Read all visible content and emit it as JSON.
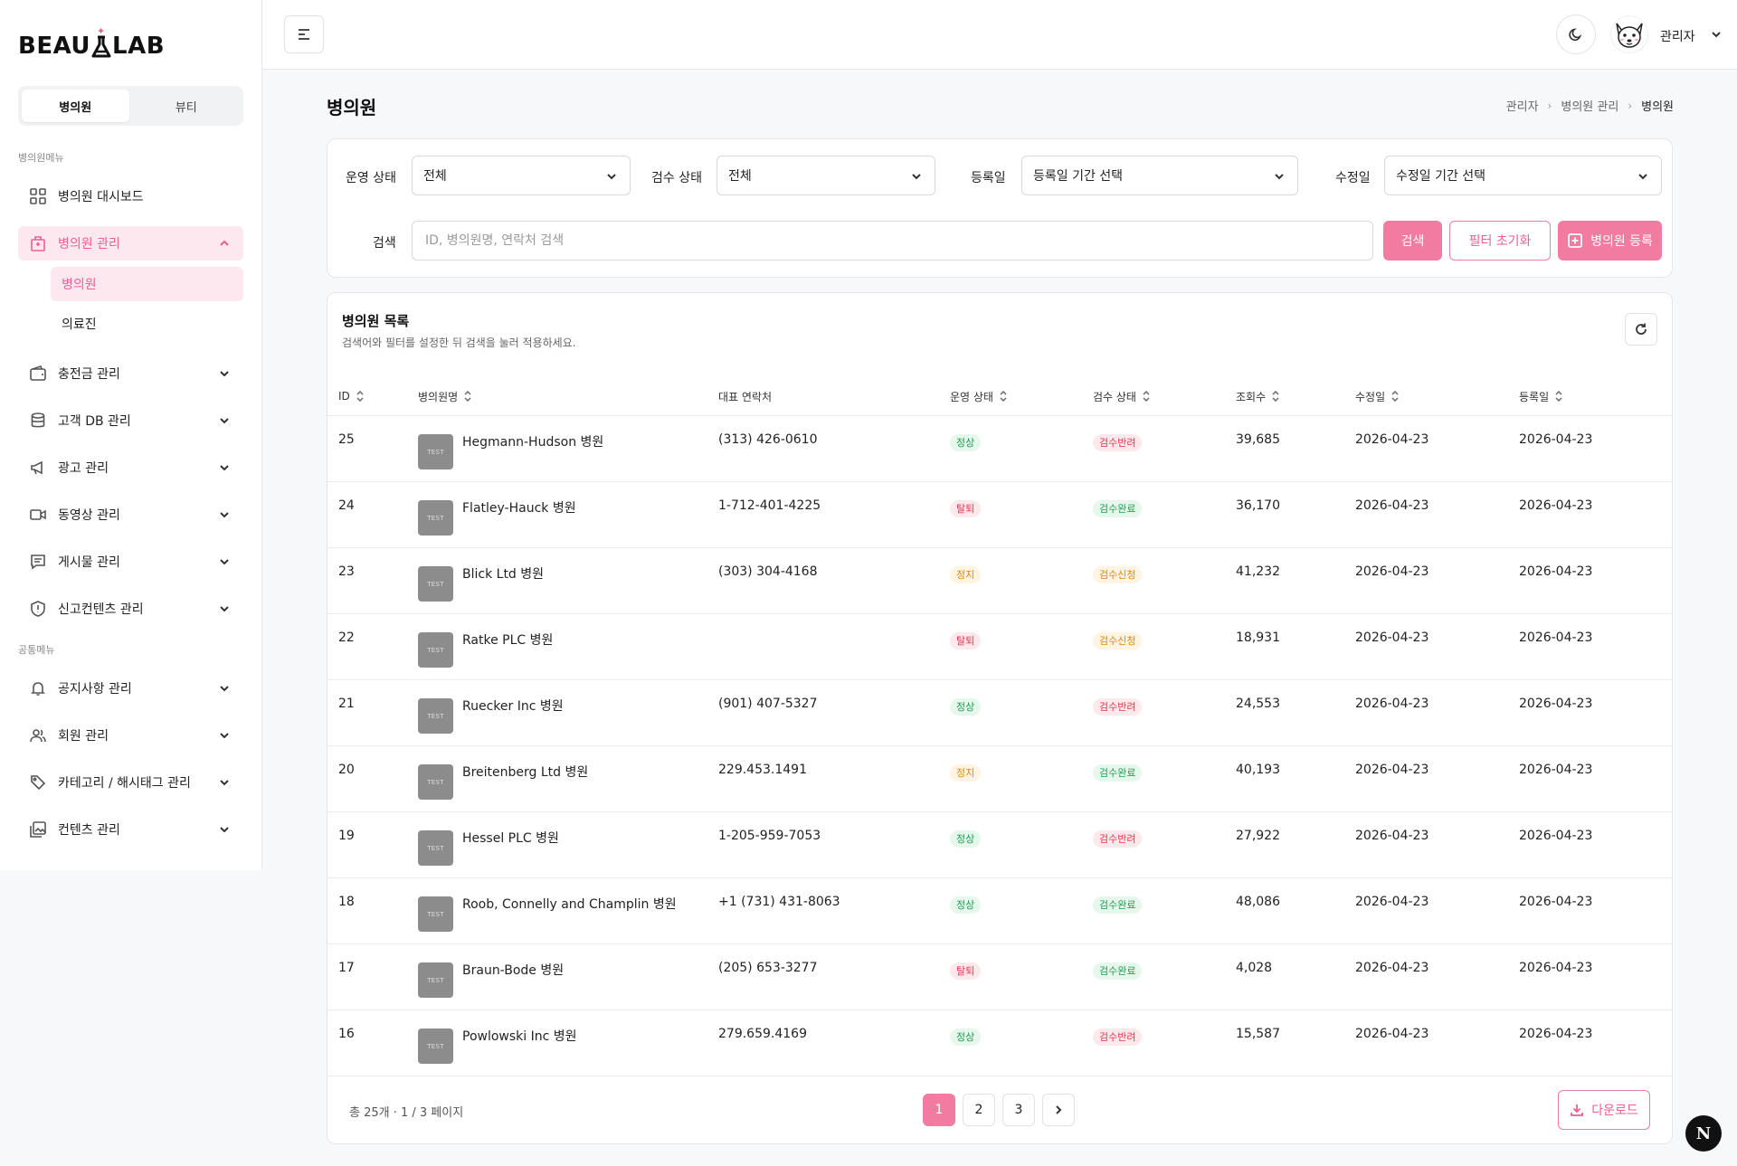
{
  "brand": {
    "logo": "BEAU LAB",
    "accent": "#f27ba2"
  },
  "sidebar": {
    "toggle": [
      "병의원",
      "뷰티"
    ],
    "section1": "병의원메뉴",
    "section2": "공통메뉴",
    "items": [
      {
        "label": "병의원 대시보드",
        "icon": "grid-icon"
      },
      {
        "label": "병의원 관리",
        "icon": "building-icon"
      },
      {
        "label": "충전금 관리",
        "icon": "wallet-icon"
      },
      {
        "label": "고객 DB 관리",
        "icon": "database-icon"
      },
      {
        "label": "광고 관리",
        "icon": "megaphone-icon"
      },
      {
        "label": "동영상 관리",
        "icon": "video-icon"
      },
      {
        "label": "게시물 관리",
        "icon": "post-icon"
      },
      {
        "label": "신고컨텐츠 관리",
        "icon": "shield-icon"
      },
      {
        "label": "공지사항 관리",
        "icon": "bell-icon"
      },
      {
        "label": "회원 관리",
        "icon": "users-icon"
      },
      {
        "label": "카테고리 / 해시태그 관리",
        "icon": "tag-icon"
      },
      {
        "label": "컨텐츠 관리",
        "icon": "image-icon"
      }
    ],
    "sub": [
      "병의원",
      "의료진"
    ]
  },
  "topbar": {
    "user": "관리자"
  },
  "page": {
    "title": "병의원",
    "breadcrumb": [
      "관리자",
      "병의원 관리",
      "병의원"
    ]
  },
  "filters": {
    "status_label": "운영 상태",
    "status_value": "전체",
    "review_label": "검수 상태",
    "review_value": "전체",
    "reg_label": "등록일",
    "reg_value": "등록일 기간 선택",
    "mod_label": "수정일",
    "mod_value": "수정일 기간 선택",
    "search_label": "검색",
    "search_placeholder": "ID, 병의원명, 연락처 검색",
    "search_btn": "검색",
    "reset_btn": "필터 초기화",
    "register_btn": "병의원 등록"
  },
  "list": {
    "title": "병의원 목록",
    "subtitle": "검색어와 필터를 설정한 뒤 검색을 눌러 적용하세요.",
    "columns": [
      "ID",
      "병의원명",
      "대표 연락처",
      "운영 상태",
      "검수 상태",
      "조회수",
      "수정일",
      "등록일"
    ],
    "thumb_text": "TEST",
    "rows": [
      {
        "id": "25",
        "name": "Hegmann-Hudson 병원",
        "phone": "(313) 426-0610",
        "status": "정상",
        "review": "검수반려",
        "views": "39,685",
        "modified": "2026-04-23",
        "registered": "2026-04-23"
      },
      {
        "id": "24",
        "name": "Flatley-Hauck 병원",
        "phone": "1-712-401-4225",
        "status": "탈퇴",
        "review": "검수완료",
        "views": "36,170",
        "modified": "2026-04-23",
        "registered": "2026-04-23"
      },
      {
        "id": "23",
        "name": "Blick Ltd 병원",
        "phone": "(303) 304-4168",
        "status": "정지",
        "review": "검수신청",
        "views": "41,232",
        "modified": "2026-04-23",
        "registered": "2026-04-23"
      },
      {
        "id": "22",
        "name": "Ratke PLC 병원",
        "phone": "",
        "status": "탈퇴",
        "review": "검수신청",
        "views": "18,931",
        "modified": "2026-04-23",
        "registered": "2026-04-23"
      },
      {
        "id": "21",
        "name": "Ruecker Inc 병원",
        "phone": "(901) 407-5327",
        "status": "정상",
        "review": "검수반려",
        "views": "24,553",
        "modified": "2026-04-23",
        "registered": "2026-04-23"
      },
      {
        "id": "20",
        "name": "Breitenberg Ltd 병원",
        "phone": "229.453.1491",
        "status": "정지",
        "review": "검수완료",
        "views": "40,193",
        "modified": "2026-04-23",
        "registered": "2026-04-23"
      },
      {
        "id": "19",
        "name": "Hessel PLC 병원",
        "phone": "1-205-959-7053",
        "status": "정상",
        "review": "검수반려",
        "views": "27,922",
        "modified": "2026-04-23",
        "registered": "2026-04-23"
      },
      {
        "id": "18",
        "name": "Roob, Connelly and Champlin 병원",
        "phone": "+1 (731) 431-8063",
        "status": "정상",
        "review": "검수완료",
        "views": "48,086",
        "modified": "2026-04-23",
        "registered": "2026-04-23"
      },
      {
        "id": "17",
        "name": "Braun-Bode 병원",
        "phone": "(205) 653-3277",
        "status": "탈퇴",
        "review": "검수완료",
        "views": "4,028",
        "modified": "2026-04-23",
        "registered": "2026-04-23"
      },
      {
        "id": "16",
        "name": "Powlowski Inc 병원",
        "phone": "279.659.4169",
        "status": "정상",
        "review": "검수반려",
        "views": "15,587",
        "modified": "2026-04-23",
        "registered": "2026-04-23"
      }
    ],
    "footer_info": "총 25개 · 1 / 3 페이지",
    "pages": [
      "1",
      "2",
      "3"
    ],
    "download": "다운로드"
  },
  "badge_colors": {
    "정상": "green",
    "탈퇴": "red",
    "정지": "orange",
    "검수반려": "red",
    "검수완료": "green",
    "검수신청": "orange"
  },
  "floating": {
    "letter": "N"
  }
}
